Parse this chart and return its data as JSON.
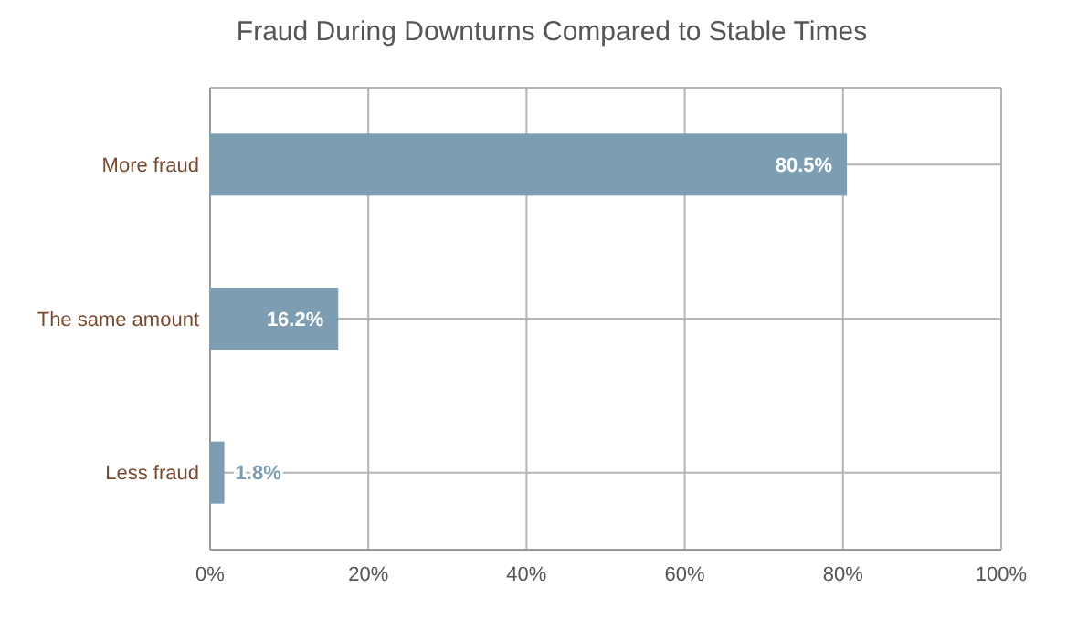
{
  "chart_data": {
    "type": "bar",
    "orientation": "horizontal",
    "title": "Fraud During Downturns Compared to Stable Times",
    "categories": [
      "More fraud",
      "The same amount",
      "Less fraud"
    ],
    "values": [
      80.5,
      16.2,
      1.8
    ],
    "color": "#7d9db2",
    "value_labels": [
      "80.5%",
      "16.2%",
      "1.8%"
    ],
    "xlim": [
      0,
      100
    ],
    "xticks": [
      {
        "value": 0,
        "label": "0%"
      },
      {
        "value": 20,
        "label": "20%"
      },
      {
        "value": 40,
        "label": "40%"
      },
      {
        "value": 60,
        "label": "60%"
      },
      {
        "value": 80,
        "label": "80%"
      },
      {
        "value": 100,
        "label": "100%"
      }
    ],
    "grid": true
  }
}
